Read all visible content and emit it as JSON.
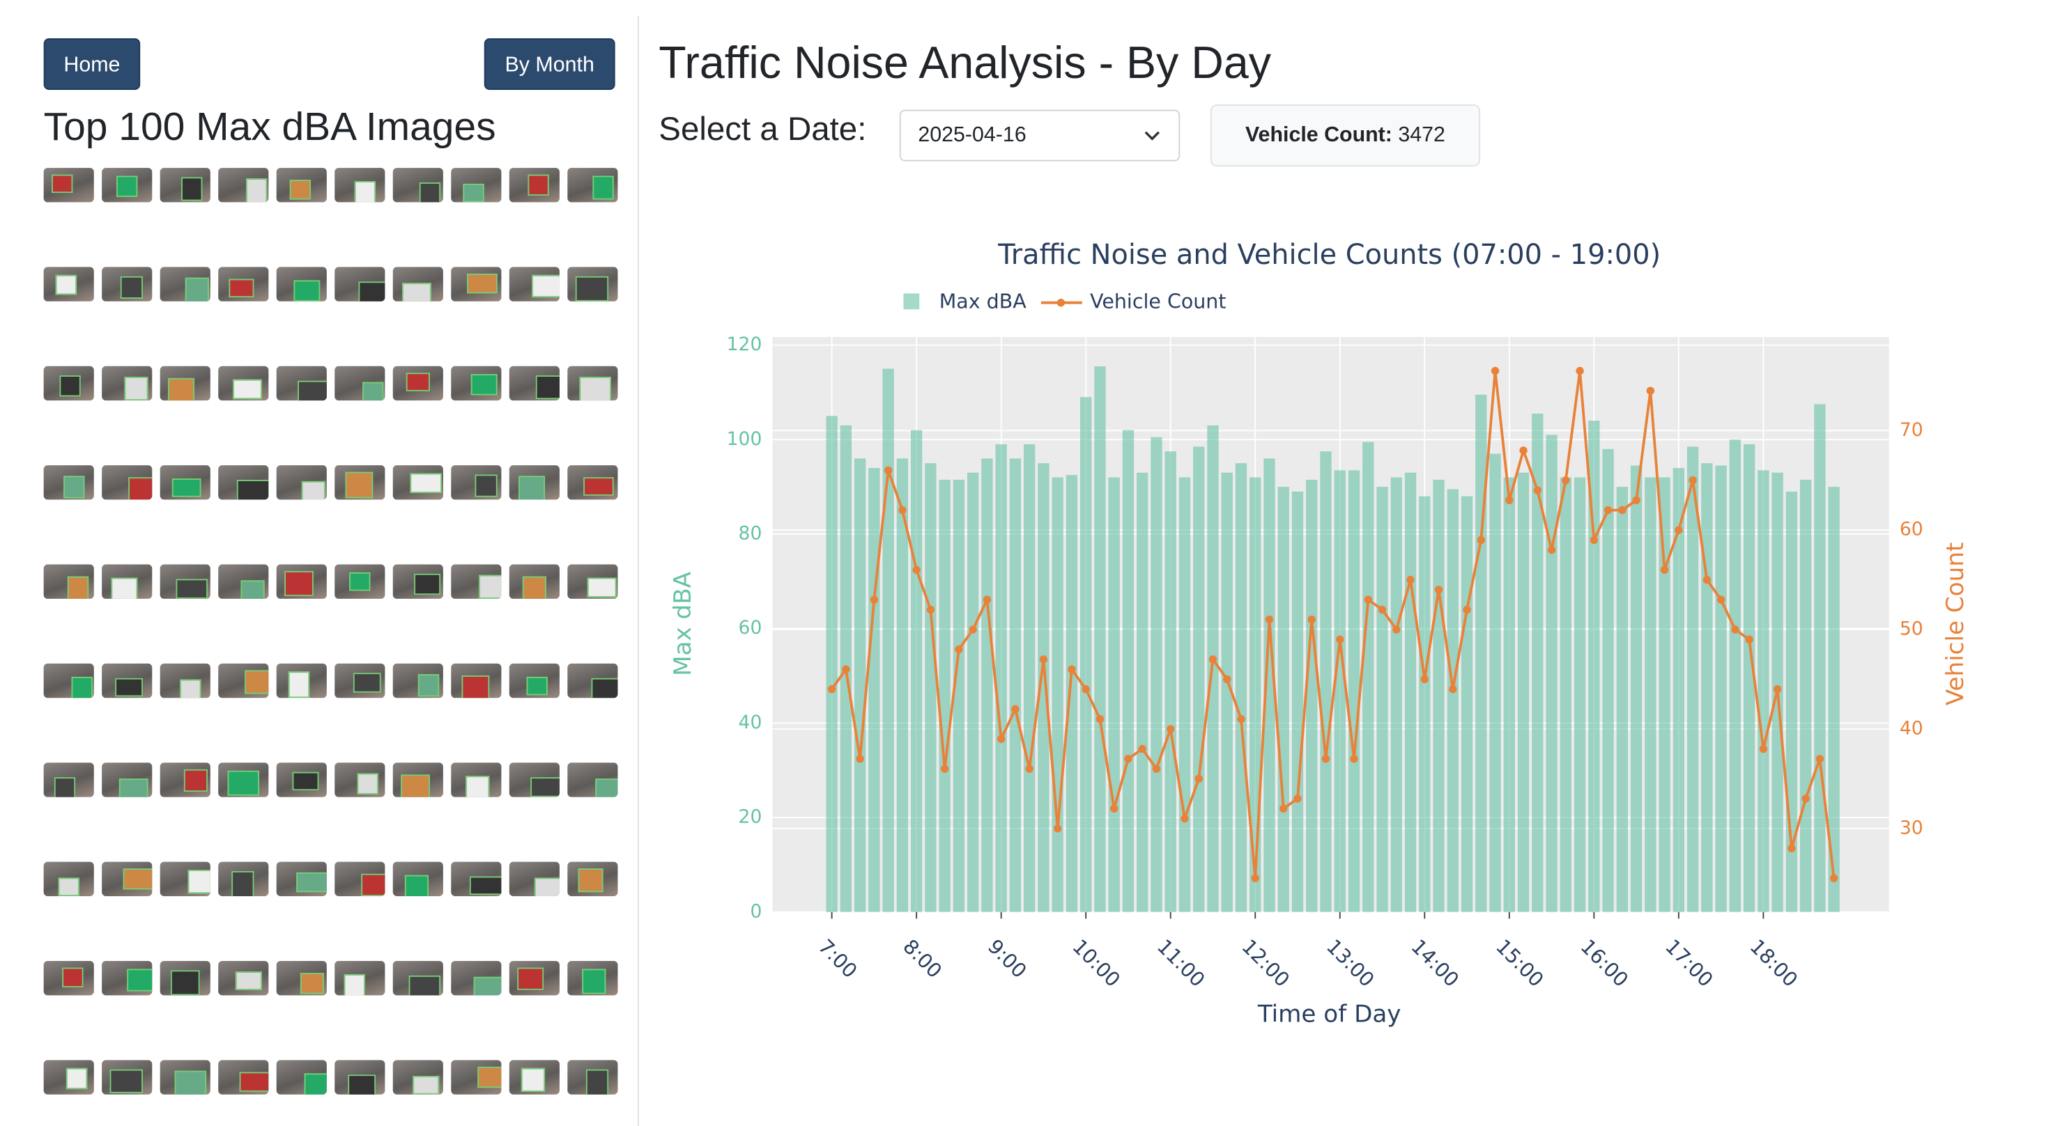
{
  "nav": {
    "home": "Home",
    "by_month": "By Month"
  },
  "sidebar": {
    "title": "Top 100 Max dBA Images"
  },
  "main": {
    "title": "Traffic Noise Analysis - By Day",
    "date_label": "Select a Date:",
    "date_value": "2025-04-16",
    "vehicle_count_label": "Vehicle Count:",
    "vehicle_count": 3472
  },
  "chart_data": {
    "type": "bar",
    "title": "Traffic Noise and Vehicle Counts (07:00 - 19:00)",
    "x_label": "Time of Day",
    "y_label": "Max dBA",
    "y2_label": "Vehicle Count",
    "x": [
      "07:00",
      "07:10",
      "07:20",
      "07:30",
      "07:40",
      "07:50",
      "08:00",
      "08:10",
      "08:20",
      "08:30",
      "08:40",
      "08:50",
      "09:00",
      "09:10",
      "09:20",
      "09:30",
      "09:40",
      "09:50",
      "10:00",
      "10:10",
      "10:20",
      "10:30",
      "10:40",
      "10:50",
      "11:00",
      "11:10",
      "11:20",
      "11:30",
      "11:40",
      "11:50",
      "12:00",
      "12:10",
      "12:20",
      "12:30",
      "12:40",
      "12:50",
      "13:00",
      "13:10",
      "13:20",
      "13:30",
      "13:40",
      "13:50",
      "14:00",
      "14:10",
      "14:20",
      "14:30",
      "14:40",
      "14:50",
      "15:00",
      "15:10",
      "15:20",
      "15:30",
      "15:40",
      "15:50",
      "16:00",
      "16:10",
      "16:20",
      "16:30",
      "16:40",
      "16:50",
      "17:00",
      "17:10",
      "17:20",
      "17:30",
      "17:40",
      "17:50",
      "18:00",
      "18:10",
      "18:20",
      "18:30",
      "18:40",
      "18:50"
    ],
    "series": [
      {
        "name": "Max dBA",
        "type": "bar",
        "axis": "y",
        "color": "#66c2a5",
        "values": [
          105,
          103,
          96,
          94,
          115,
          96,
          102,
          95,
          91.5,
          91.5,
          93,
          96,
          99,
          96,
          99,
          95,
          92,
          92.5,
          109,
          115.5,
          92,
          102,
          93,
          100.5,
          97.5,
          92,
          98.5,
          103,
          93,
          95,
          92,
          96,
          90,
          89,
          91.5,
          97.5,
          93.5,
          93.5,
          99.5,
          90,
          92,
          93,
          88,
          91.5,
          89.5,
          88,
          109.5,
          97,
          92,
          93,
          105.5,
          101,
          92,
          92,
          104,
          98,
          90,
          94.5,
          92,
          92,
          94,
          98.5,
          95,
          94.5,
          100,
          99,
          93.5,
          93,
          89,
          91.5,
          107.5,
          90
        ]
      },
      {
        "name": "Vehicle Count",
        "type": "line",
        "axis": "y2",
        "color": "#e8823a",
        "values": [
          44,
          46,
          37,
          53,
          66,
          62,
          56,
          52,
          36,
          48,
          50,
          53,
          39,
          42,
          36,
          47,
          30,
          46,
          44,
          41,
          32,
          37,
          38,
          36,
          40,
          31,
          35,
          47,
          45,
          41,
          25,
          51,
          32,
          33,
          51,
          37,
          49,
          37,
          53,
          52,
          50,
          55,
          45,
          54,
          44,
          52,
          59,
          76,
          63,
          68,
          64,
          58,
          65,
          76,
          59,
          62,
          62,
          63,
          74,
          56,
          60,
          65,
          55,
          53,
          50,
          49,
          38,
          44,
          28,
          33,
          37,
          25
        ]
      }
    ],
    "xlim": [
      "06:18",
      "19:29"
    ],
    "xticks": [
      {
        "value": "07:00",
        "label": "7:00"
      },
      {
        "value": "08:00",
        "label": "8:00"
      },
      {
        "value": "09:00",
        "label": "9:00"
      },
      "10:00",
      "11:00",
      "12:00",
      "13:00",
      "14:00",
      "15:00",
      "16:00",
      "17:00",
      "18:00"
    ],
    "ylim": [
      0,
      121.7
    ],
    "yticks": [
      0,
      20,
      40,
      60,
      80,
      100,
      120
    ],
    "y2lim": [
      21.6,
      79.4
    ],
    "y2ticks": [
      30,
      40,
      50,
      60,
      70
    ],
    "grid": true,
    "legend": "top"
  }
}
